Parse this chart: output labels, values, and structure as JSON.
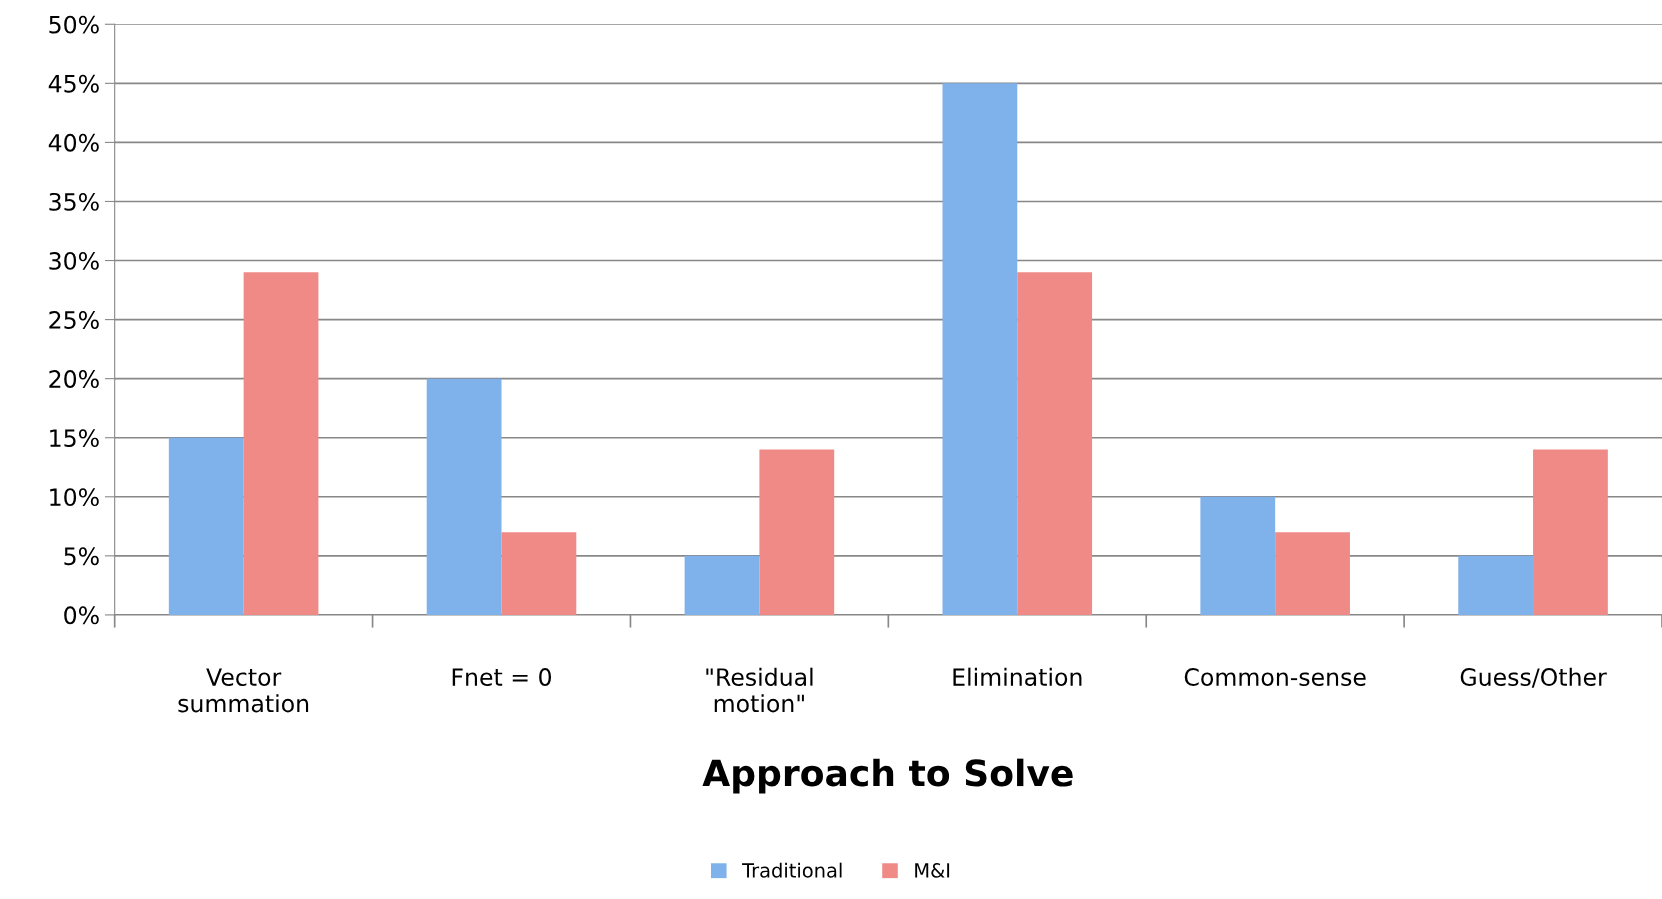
{
  "chart_data": {
    "type": "bar",
    "xlabel": "Approach to Solve",
    "categories": [
      "Vector\nsummation",
      "Fnet = 0",
      "\"Residual\nmotion\"",
      "Elimination",
      "Common-sense",
      "Guess/Other"
    ],
    "series": [
      {
        "name": "Traditional",
        "color": "#7fb1ea",
        "values": [
          15,
          20,
          5,
          45,
          10,
          5
        ]
      },
      {
        "name": "M&I",
        "color": "#f08a86",
        "values": [
          29,
          7,
          14,
          29,
          7,
          14
        ]
      }
    ],
    "ylim": [
      0,
      50
    ],
    "yticks": [
      {
        "value": 0,
        "label": "0%"
      },
      {
        "value": 5,
        "label": "5%"
      },
      {
        "value": 10,
        "label": "10%"
      },
      {
        "value": 15,
        "label": "15%"
      },
      {
        "value": 20,
        "label": "20%"
      },
      {
        "value": 25,
        "label": "25%"
      },
      {
        "value": 30,
        "label": "30%"
      },
      {
        "value": 35,
        "label": "35%"
      },
      {
        "value": 40,
        "label": "40%"
      },
      {
        "value": 45,
        "label": "45%"
      },
      {
        "value": 50,
        "label": "50%"
      }
    ],
    "grid": "y",
    "legend": "bottom"
  }
}
